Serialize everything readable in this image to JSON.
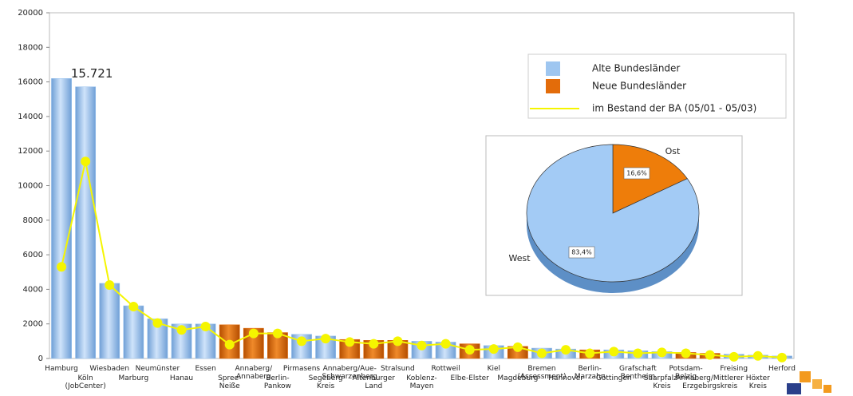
{
  "chart_data": [
    {
      "type": "bar",
      "categories": [
        "Hamburg",
        "Köln\n(JobCenter)",
        "Wiesbaden",
        "Marburg",
        "Neumünster",
        "Hanau",
        "Essen",
        "Spree-\nNeiße",
        "Annaberg/\nAnnaberg",
        "Berlin-\nPankow",
        "Pirmasens",
        "Segeberg\nKreis",
        "Annaberg/Aue-\nSchwarzenberg",
        "Altenburger\nLand",
        "Stralsund",
        "Koblenz-\nMayen",
        "Rottweil",
        "Elbe-Elster",
        "Kiel",
        "Magdeburg",
        "Bremen\n(Assessment)",
        "Hannover",
        "Berlin-\nMarzahn",
        "Göttingen",
        "Grafschaft\nBentheim",
        "Saarpfalz-\nKreis",
        "Potsdam-\nBelzig",
        "Annaberg/Mittlerer\nErzgebirgskreis",
        "Freising",
        "Höxter\nKreis",
        "Herford"
      ],
      "series": [
        {
          "name": "Alte Bundesländer",
          "color": "#9ec6f0",
          "values": [
            16200,
            15721,
            4350,
            3050,
            2300,
            2000,
            2000,
            null,
            null,
            null,
            1400,
            1300,
            null,
            null,
            null,
            1000,
            950,
            null,
            750,
            null,
            600,
            550,
            null,
            500,
            450,
            400,
            null,
            null,
            250,
            200,
            150
          ],
          "value_labels": [
            null,
            "15.721",
            null,
            null,
            null,
            null,
            null,
            null,
            null,
            null,
            null,
            null,
            null,
            null,
            null,
            null,
            null,
            null,
            null,
            null,
            null,
            null,
            null,
            null,
            null,
            null,
            null,
            null,
            null,
            null,
            null
          ]
        },
        {
          "name": "Neue Bundesländer",
          "color": "#e36c0a",
          "values": [
            null,
            null,
            null,
            null,
            null,
            null,
            null,
            1950,
            1750,
            1500,
            null,
            null,
            1100,
            1050,
            1050,
            null,
            null,
            850,
            null,
            700,
            null,
            null,
            500,
            null,
            null,
            null,
            350,
            300,
            null,
            null,
            null
          ]
        },
        {
          "name": "im Bestand der BA (05/01 -  05/03)",
          "type": "line",
          "color": "#f5f500",
          "values": [
            5300,
            11400,
            4250,
            3000,
            2050,
            1650,
            1850,
            800,
            1450,
            1450,
            1000,
            1150,
            950,
            850,
            1000,
            750,
            850,
            500,
            550,
            650,
            300,
            500,
            300,
            400,
            300,
            350,
            300,
            200,
            100,
            150,
            50
          ]
        }
      ],
      "ylim": [
        0,
        20000
      ],
      "yticks": [
        0,
        2000,
        4000,
        6000,
        8000,
        10000,
        12000,
        14000,
        16000,
        18000,
        20000
      ]
    },
    {
      "type": "pie",
      "categories": [
        "West",
        "Ost"
      ],
      "values": [
        83.4,
        16.6
      ],
      "value_labels": [
        "83,4%",
        "16,6%"
      ],
      "colors": [
        "#a3cbf5",
        "#ee7d0a"
      ]
    }
  ]
}
